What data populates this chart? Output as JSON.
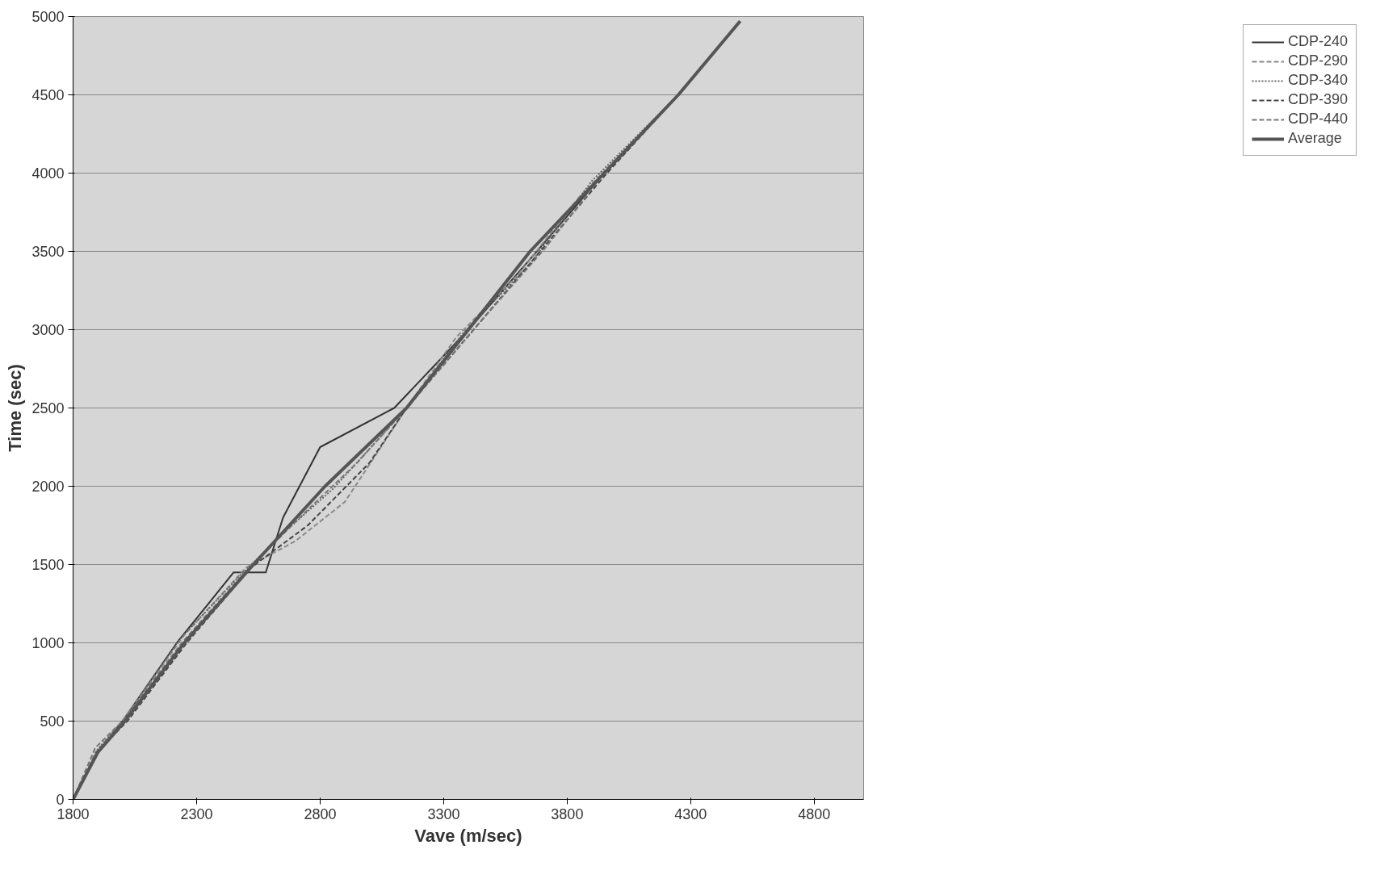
{
  "chart_data": {
    "type": "line",
    "xlabel": "Vave (m/sec)",
    "ylabel": "Time (sec)",
    "xlim": [
      1800,
      5000
    ],
    "xticks": [
      1800,
      2300,
      2800,
      3300,
      3800,
      4300,
      4800
    ],
    "ylim": [
      0,
      5000
    ],
    "yticks": [
      0,
      500,
      1000,
      1500,
      2000,
      2500,
      3000,
      3500,
      4000,
      4500,
      5000
    ],
    "grid": "y",
    "legend": "right",
    "marker": "none",
    "series": [
      {
        "name": "CDP-240",
        "color": "#333333",
        "line_style": "solid",
        "x": [
          1800,
          1900,
          2000,
          2220,
          2450,
          2580,
          2650,
          2800,
          3100,
          3400,
          3650,
          3950,
          4250,
          4500
        ],
        "values": [
          0,
          300,
          500,
          1000,
          1450,
          1450,
          1800,
          2250,
          2500,
          3000,
          3450,
          4000,
          4500,
          4970
        ]
      },
      {
        "name": "CDP-290",
        "color": "#8a8a8a",
        "line_style": "dashed",
        "x": [
          1800,
          1890,
          2000,
          2250,
          2500,
          2700,
          2900,
          3150,
          3350,
          3600,
          3850,
          4250,
          4500
        ],
        "values": [
          0,
          300,
          500,
          1050,
          1480,
          1650,
          1900,
          2500,
          2950,
          3350,
          3850,
          4500,
          4970
        ]
      },
      {
        "name": "CDP-340",
        "color": "#666666",
        "line_style": "dotted",
        "x": [
          1800,
          1900,
          2010,
          2230,
          2470,
          2650,
          2850,
          3150,
          3380,
          3650,
          3900,
          4250,
          4500
        ],
        "values": [
          0,
          320,
          520,
          1020,
          1420,
          1700,
          1980,
          2500,
          2980,
          3420,
          3950,
          4500,
          4970
        ]
      },
      {
        "name": "CDP-390",
        "color": "#444444",
        "line_style": "dashed",
        "x": [
          1800,
          1900,
          2020,
          2260,
          2520,
          2750,
          3000,
          3150,
          3400,
          3680,
          3950,
          4250,
          4500
        ],
        "values": [
          0,
          310,
          500,
          1000,
          1480,
          1750,
          2150,
          2500,
          2960,
          3480,
          3980,
          4500,
          4970
        ]
      },
      {
        "name": "CDP-440",
        "color": "#777777",
        "line_style": "dashed",
        "x": [
          1800,
          1890,
          2000,
          2240,
          2500,
          2750,
          2950,
          3150,
          3420,
          3700,
          3950,
          4250,
          4500
        ],
        "values": [
          0,
          330,
          500,
          1000,
          1460,
          1850,
          2150,
          2500,
          3000,
          3500,
          4000,
          4500,
          4970
        ]
      },
      {
        "name": "Average",
        "color": "#555555",
        "line_style": "solid",
        "x": [
          1800,
          1900,
          2010,
          2250,
          2530,
          2820,
          3150,
          3400,
          3650,
          3950,
          4250,
          4500
        ],
        "values": [
          0,
          300,
          500,
          1000,
          1500,
          2000,
          2500,
          3000,
          3500,
          4000,
          4500,
          4970
        ]
      }
    ]
  }
}
